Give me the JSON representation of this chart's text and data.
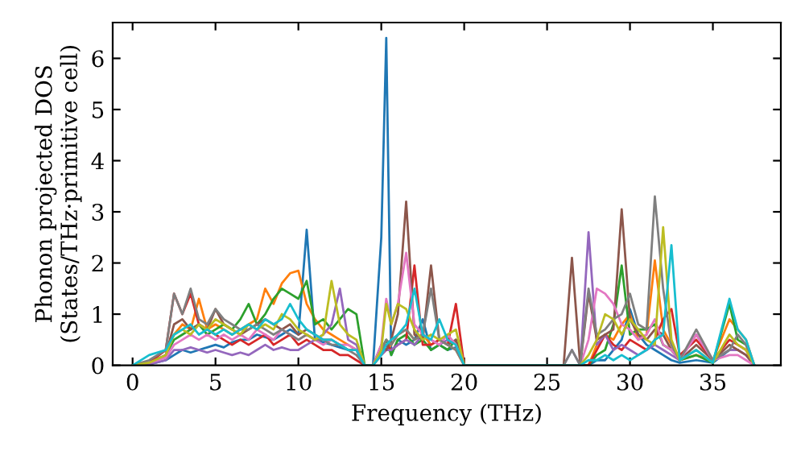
{
  "chart_data": {
    "type": "line",
    "xlabel": "Frequency (THz)",
    "ylabel": "Phonon projected DOS\n(States/THz·primitive cell)",
    "xlim": [
      -1.2,
      39.1
    ],
    "ylim": [
      0,
      6.7
    ],
    "xticks": [
      0,
      5,
      10,
      15,
      20,
      25,
      30,
      35
    ],
    "yticks": [
      0,
      1,
      2,
      3,
      4,
      5,
      6
    ],
    "grid": false,
    "marker": "none",
    "line_style": "solid",
    "x": [
      0,
      1,
      2,
      2.5,
      3,
      3.5,
      4,
      4.5,
      5,
      5.5,
      6,
      6.5,
      7,
      7.5,
      8,
      8.5,
      9,
      9.5,
      10,
      10.5,
      11,
      11.5,
      12,
      12.5,
      13,
      13.5,
      14,
      14.5,
      15,
      15.3,
      15.6,
      16,
      16.5,
      17,
      17.5,
      18,
      18.5,
      19,
      19.5,
      20,
      26,
      26.5,
      27,
      27.5,
      28,
      28.5,
      29,
      29.5,
      30,
      30.5,
      31,
      31.5,
      32,
      32.5,
      33,
      34,
      35,
      36,
      36.5,
      37,
      37.5
    ],
    "series": [
      {
        "color": "#1f77b4",
        "values": [
          0,
          0.02,
          0.1,
          0.2,
          0.3,
          0.25,
          0.3,
          0.35,
          0.4,
          0.35,
          0.45,
          0.5,
          0.5,
          0.6,
          0.55,
          0.5,
          0.6,
          0.7,
          0.6,
          2.65,
          0.5,
          0.45,
          0.4,
          0.35,
          0.3,
          0.3,
          0,
          0,
          2.5,
          6.4,
          0.2,
          0.5,
          0.4,
          0.5,
          0.9,
          0.3,
          0.4,
          0.3,
          0.35,
          0,
          0,
          0,
          0,
          0,
          0.1,
          0.1,
          0.3,
          0.5,
          1.1,
          0.6,
          0.4,
          0.3,
          0.2,
          0.1,
          0.05,
          0.1,
          0.05,
          0.3,
          0.3,
          null,
          null
        ]
      },
      {
        "color": "#ff7f0e",
        "values": [
          null,
          null,
          0.3,
          0.6,
          0.8,
          0.7,
          1.3,
          0.7,
          0.8,
          0.7,
          0.6,
          0.7,
          0.8,
          0.9,
          1.5,
          1.2,
          1.6,
          1.8,
          1.85,
          1.2,
          0.9,
          0.7,
          0.6,
          0.5,
          0.4,
          0.3,
          0,
          0,
          0.2,
          0.3,
          0.4,
          0.6,
          0.7,
          0.5,
          0.6,
          0.4,
          0.5,
          0.4,
          0.3,
          0,
          0,
          0,
          0,
          0,
          0.4,
          0.6,
          0.5,
          0.8,
          1.0,
          0.5,
          0.6,
          2.05,
          0.7,
          0.4,
          0.1,
          0.2,
          0.1,
          0.9,
          0.7,
          0.5,
          0
        ]
      },
      {
        "color": "#2ca02c",
        "values": [
          0,
          0.05,
          0.2,
          0.5,
          0.6,
          0.7,
          0.8,
          0.6,
          0.7,
          0.8,
          0.7,
          0.9,
          1.2,
          0.8,
          1.0,
          1.3,
          1.5,
          1.4,
          1.3,
          1.65,
          0.8,
          0.9,
          0.7,
          0.9,
          1.1,
          1.0,
          0,
          0,
          0.3,
          0.5,
          0.2,
          0.5,
          0.6,
          0.4,
          0.5,
          0.3,
          0.4,
          0.3,
          0.5,
          0,
          0,
          0,
          0,
          0,
          0.2,
          0.3,
          0.8,
          1.95,
          0.6,
          0.7,
          0.7,
          0.8,
          0.4,
          0.3,
          0.1,
          0.2,
          0.05,
          1.2,
          0.5,
          0.4,
          0
        ]
      },
      {
        "color": "#d62728",
        "values": [
          0,
          0.05,
          0.3,
          1.4,
          1.0,
          1.4,
          0.8,
          0.7,
          0.6,
          0.5,
          0.4,
          0.5,
          0.4,
          0.5,
          0.6,
          0.4,
          0.5,
          0.6,
          0.4,
          0.5,
          0.4,
          0.3,
          0.3,
          0.2,
          0.2,
          0.1,
          0,
          0,
          0.3,
          0.4,
          0.3,
          0.4,
          0.5,
          1.95,
          0.4,
          0.4,
          0.5,
          0.4,
          1.2,
          0,
          0,
          0,
          0,
          0,
          0.3,
          0.6,
          0.4,
          0.3,
          0.5,
          0.4,
          0.3,
          0.5,
          0.9,
          1.1,
          0.2,
          0.5,
          0.1,
          0.5,
          0.4,
          0.3,
          0
        ]
      },
      {
        "color": "#9467bd",
        "values": [
          0,
          0.02,
          0.1,
          0.3,
          0.3,
          0.35,
          0.3,
          0.25,
          0.3,
          0.25,
          0.2,
          0.25,
          0.2,
          0.3,
          0.4,
          0.3,
          0.35,
          0.3,
          0.3,
          0.4,
          0.5,
          0.6,
          0.8,
          1.5,
          0.5,
          0.4,
          0,
          0,
          0.2,
          0.3,
          0.3,
          0.4,
          0.5,
          0.4,
          0.6,
          0.5,
          0.4,
          0.5,
          0.4,
          0,
          0,
          0.3,
          0,
          2.6,
          0.4,
          0.6,
          0.3,
          0.4,
          0.3,
          0.2,
          0.3,
          0.4,
          0.3,
          0.2,
          0.1,
          0.6,
          0.1,
          0.3,
          0.3,
          0.2,
          0
        ]
      },
      {
        "color": "#8c564b",
        "values": [
          0,
          0.05,
          0.2,
          0.8,
          0.9,
          0.7,
          0.8,
          0.7,
          1.1,
          0.8,
          0.7,
          0.6,
          0.7,
          0.8,
          0.9,
          0.8,
          0.7,
          0.8,
          0.6,
          0.7,
          0.6,
          0.5,
          0.5,
          0.4,
          0.3,
          0.3,
          0,
          0,
          0.4,
          0.3,
          0.5,
          1.0,
          3.2,
          0.6,
          0.5,
          1.95,
          0.5,
          0.4,
          0.5,
          0,
          0,
          2.1,
          0,
          1.4,
          0.5,
          0.6,
          0.7,
          3.05,
          0.9,
          0.6,
          0.5,
          0.7,
          0.6,
          0.3,
          0.1,
          0.4,
          0.1,
          0.4,
          0.3,
          0.2,
          0
        ]
      },
      {
        "color": "#e377c2",
        "values": [
          0,
          0.05,
          0.15,
          0.4,
          0.5,
          0.6,
          0.5,
          0.6,
          0.5,
          0.6,
          0.5,
          0.6,
          0.5,
          0.7,
          0.6,
          0.5,
          0.7,
          0.6,
          0.5,
          0.6,
          0.5,
          0.4,
          0.5,
          0.4,
          0.4,
          0.3,
          0,
          0,
          0.4,
          1.3,
          0.8,
          1.2,
          2.2,
          0.8,
          0.6,
          0.5,
          0.4,
          0.6,
          0.4,
          0,
          0,
          0,
          0,
          0.5,
          1.5,
          1.4,
          1.2,
          0.8,
          0.7,
          0.5,
          0.6,
          0.9,
          0.4,
          0.3,
          0.1,
          0.6,
          0.1,
          0.2,
          0.2,
          0.1,
          0
        ]
      },
      {
        "color": "#7f7f7f",
        "values": [
          0,
          0.1,
          0.3,
          1.4,
          1.0,
          1.5,
          0.9,
          0.8,
          1.1,
          0.9,
          0.8,
          0.7,
          0.7,
          0.8,
          0.7,
          0.6,
          0.7,
          0.6,
          0.5,
          0.6,
          0.5,
          0.5,
          0.4,
          0.4,
          0.3,
          0.2,
          0,
          0,
          0.3,
          0.5,
          0.4,
          0.6,
          0.7,
          0.5,
          0.6,
          1.5,
          0.5,
          0.4,
          0.3,
          0,
          0,
          0.3,
          0,
          1.5,
          0.6,
          0.7,
          0.9,
          1.0,
          1.4,
          0.8,
          0.7,
          3.3,
          1.5,
          0.4,
          0.1,
          0.7,
          0.1,
          0.3,
          0.6,
          0.4,
          0
        ]
      },
      {
        "color": "#bcbd22",
        "values": [
          0,
          0.05,
          0.2,
          0.6,
          0.7,
          0.6,
          0.8,
          0.7,
          0.9,
          0.8,
          0.7,
          0.6,
          0.8,
          0.7,
          0.8,
          0.7,
          1.0,
          0.9,
          0.7,
          0.6,
          0.5,
          0.6,
          1.65,
          0.8,
          0.6,
          0.5,
          0,
          0,
          0.3,
          1.2,
          0.8,
          1.2,
          1.1,
          0.7,
          0.5,
          0.6,
          0.5,
          0.6,
          0.7,
          0,
          0,
          0,
          0,
          0.2,
          0.5,
          1.0,
          0.9,
          0.6,
          0.9,
          0.7,
          0.5,
          0.4,
          2.7,
          0.5,
          0.1,
          0.3,
          0.05,
          0.6,
          0.4,
          0.3,
          0
        ]
      },
      {
        "color": "#17becf",
        "values": [
          0,
          0.2,
          0.3,
          0.6,
          0.7,
          0.8,
          0.6,
          0.7,
          0.6,
          0.7,
          0.6,
          0.7,
          0.8,
          0.7,
          0.9,
          0.8,
          0.9,
          1.2,
          0.9,
          0.7,
          0.6,
          0.5,
          0.5,
          0.4,
          0.3,
          0.3,
          0,
          0,
          0.2,
          0.4,
          0.5,
          0.6,
          0.8,
          1.5,
          0.6,
          0.5,
          0.9,
          0.5,
          0.4,
          0,
          0,
          0,
          0,
          0.1,
          0.1,
          0.2,
          0.1,
          0.2,
          0.1,
          0.2,
          0.3,
          0.5,
          0.6,
          2.35,
          0.1,
          0.3,
          0.05,
          1.3,
          0.7,
          0.5,
          0
        ]
      }
    ]
  }
}
